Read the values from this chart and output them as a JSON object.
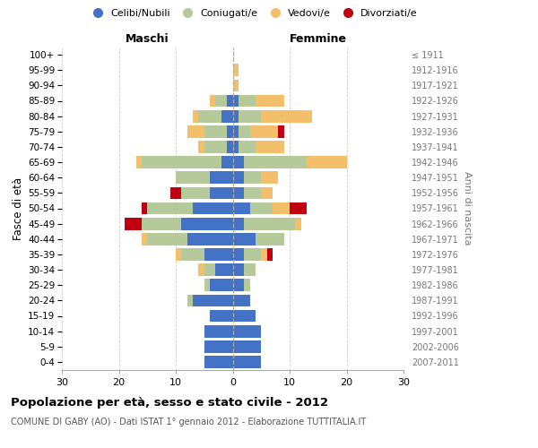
{
  "age_groups": [
    "0-4",
    "5-9",
    "10-14",
    "15-19",
    "20-24",
    "25-29",
    "30-34",
    "35-39",
    "40-44",
    "45-49",
    "50-54",
    "55-59",
    "60-64",
    "65-69",
    "70-74",
    "75-79",
    "80-84",
    "85-89",
    "90-94",
    "95-99",
    "100+"
  ],
  "birth_years": [
    "2007-2011",
    "2002-2006",
    "1997-2001",
    "1992-1996",
    "1987-1991",
    "1982-1986",
    "1977-1981",
    "1972-1976",
    "1967-1971",
    "1962-1966",
    "1957-1961",
    "1952-1956",
    "1947-1951",
    "1942-1946",
    "1937-1941",
    "1932-1936",
    "1927-1931",
    "1922-1926",
    "1917-1921",
    "1912-1916",
    "≤ 1911"
  ],
  "males": {
    "celibi": [
      5,
      5,
      5,
      4,
      7,
      4,
      3,
      5,
      8,
      9,
      7,
      4,
      4,
      2,
      1,
      1,
      2,
      1,
      0,
      0,
      0
    ],
    "coniugati": [
      0,
      0,
      0,
      0,
      1,
      1,
      2,
      4,
      7,
      7,
      8,
      5,
      6,
      14,
      4,
      4,
      4,
      2,
      0,
      0,
      0
    ],
    "vedovi": [
      0,
      0,
      0,
      0,
      0,
      0,
      1,
      1,
      1,
      0,
      0,
      0,
      0,
      1,
      1,
      3,
      1,
      1,
      0,
      0,
      0
    ],
    "divorziati": [
      0,
      0,
      0,
      0,
      0,
      0,
      0,
      0,
      0,
      3,
      1,
      2,
      0,
      0,
      0,
      0,
      0,
      0,
      0,
      0,
      0
    ]
  },
  "females": {
    "nubili": [
      5,
      5,
      5,
      4,
      3,
      2,
      2,
      2,
      4,
      2,
      3,
      2,
      2,
      2,
      1,
      1,
      1,
      1,
      0,
      0,
      0
    ],
    "coniugate": [
      0,
      0,
      0,
      0,
      0,
      1,
      2,
      3,
      5,
      9,
      4,
      3,
      3,
      11,
      3,
      2,
      4,
      3,
      0,
      0,
      0
    ],
    "vedove": [
      0,
      0,
      0,
      0,
      0,
      0,
      0,
      1,
      0,
      1,
      3,
      2,
      3,
      7,
      5,
      5,
      9,
      5,
      1,
      1,
      0
    ],
    "divorziate": [
      0,
      0,
      0,
      0,
      0,
      0,
      0,
      1,
      0,
      0,
      3,
      0,
      0,
      0,
      0,
      1,
      0,
      0,
      0,
      0,
      0
    ]
  },
  "colors": {
    "celibi": "#4472c4",
    "coniugati": "#b5c99a",
    "vedovi": "#f4bf6b",
    "divorziati": "#c00010"
  },
  "xlim": 30,
  "title": "Popolazione per età, sesso e stato civile - 2012",
  "subtitle": "COMUNE DI GABY (AO) - Dati ISTAT 1° gennaio 2012 - Elaborazione TUTTITALIA.IT",
  "ylabel_left": "Fasce di età",
  "ylabel_right": "Anni di nascita",
  "header_left": "Maschi",
  "header_right": "Femmine",
  "legend_labels": [
    "Celibi/Nubili",
    "Coniugati/e",
    "Vedovi/e",
    "Divorziati/e"
  ]
}
